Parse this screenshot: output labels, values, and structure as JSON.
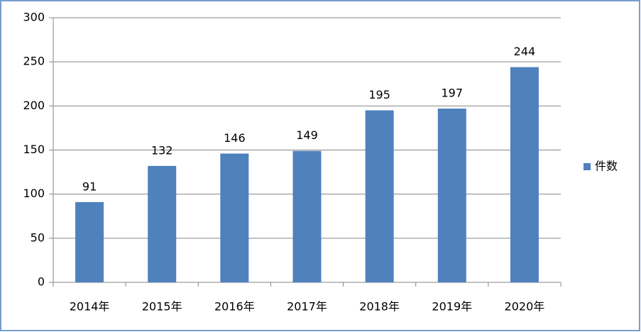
{
  "chart_data": {
    "type": "bar",
    "categories": [
      "2014年",
      "2015年",
      "2016年",
      "2017年",
      "2018年",
      "2019年",
      "2020年"
    ],
    "series": [
      {
        "name": "件数",
        "color": "#4f81bd",
        "values": [
          91,
          132,
          146,
          149,
          195,
          197,
          244
        ]
      }
    ],
    "ylim": [
      0,
      300
    ],
    "yticks": [
      0,
      50,
      100,
      150,
      200,
      250,
      300
    ],
    "grid": true,
    "data_labels": true,
    "legend": "right"
  }
}
